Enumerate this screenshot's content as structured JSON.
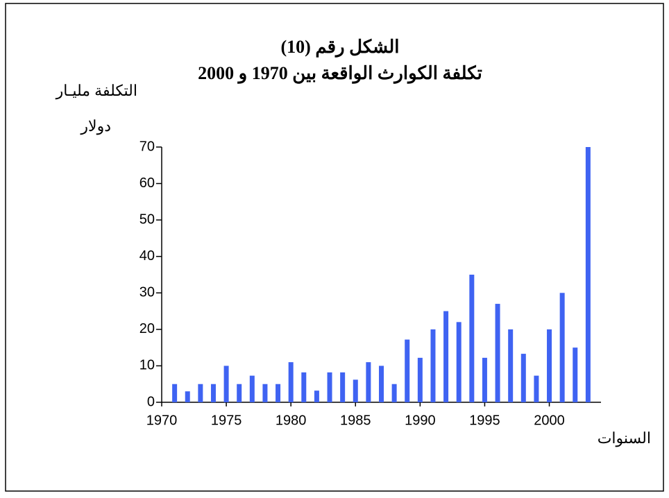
{
  "chart_data": {
    "type": "bar",
    "title": [
      "الشكل رقم (10)",
      "تكلفة الكوارث الواقعة بين 1970 و 2000"
    ],
    "y_label": [
      "التكلفة مليـار",
      "دولار"
    ],
    "x_label": "السنوات",
    "x": [
      1971,
      1972,
      1973,
      1974,
      1975,
      1976,
      1977,
      1978,
      1979,
      1980,
      1981,
      1982,
      1983,
      1984,
      1985,
      1986,
      1987,
      1988,
      1989,
      1990,
      1991,
      1992,
      1993,
      1994,
      1995,
      1996,
      1997,
      1998,
      1999,
      2000,
      2001,
      2002,
      2003
    ],
    "values": [
      5,
      3,
      5,
      5,
      10,
      5,
      7.3,
      5,
      5,
      11,
      8.2,
      3.2,
      8.2,
      8.2,
      6.2,
      11,
      10,
      5,
      17.2,
      12.2,
      20,
      25,
      22,
      35,
      12.2,
      27,
      20,
      13.3,
      7.3,
      20,
      30,
      15,
      70
    ],
    "color": "#3f63f2",
    "xlim": [
      1970,
      2004
    ],
    "xticks": [
      1970,
      1975,
      1980,
      1985,
      1990,
      1995,
      2000
    ],
    "ylim": [
      0,
      70
    ],
    "yticks": [
      0,
      10,
      20,
      30,
      40,
      50,
      60,
      70
    ]
  }
}
